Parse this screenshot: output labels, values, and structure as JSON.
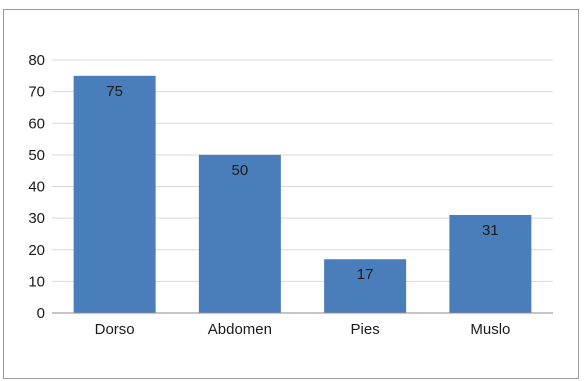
{
  "chart_data": {
    "type": "bar",
    "categories": [
      "Dorso",
      "Abdomen",
      "Pies",
      "Muslo"
    ],
    "values": [
      75,
      50,
      17,
      31
    ],
    "data_labels": [
      "75",
      "50",
      "17",
      "31"
    ],
    "ylim": [
      0,
      80
    ],
    "y_ticks": [
      0,
      10,
      20,
      30,
      40,
      50,
      60,
      70,
      80
    ],
    "grid": true,
    "legend": "none",
    "bar_color": "#4a7ebb",
    "grid_color": "#d9d9d9",
    "axis_color": "#8c8c8c"
  }
}
